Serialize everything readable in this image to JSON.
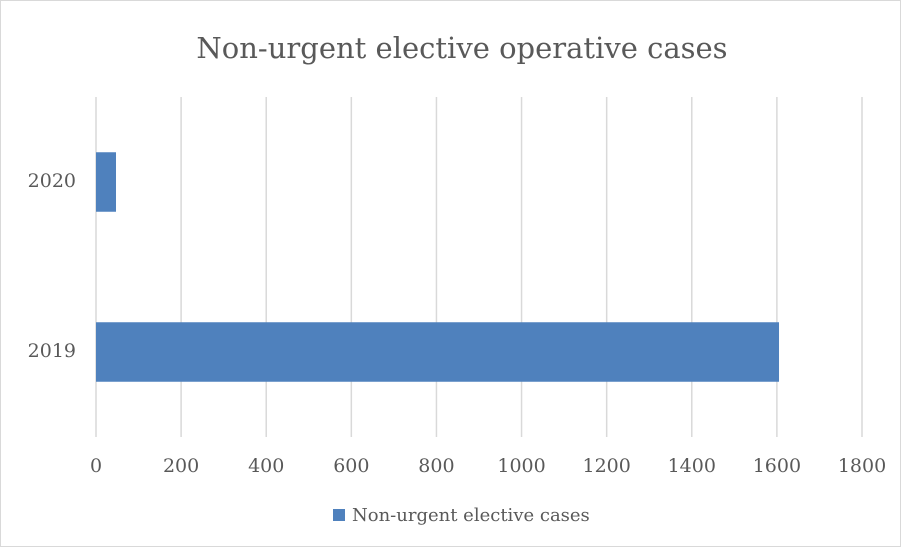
{
  "chart_data": {
    "type": "hbar",
    "title": "Non-urgent elective operative cases",
    "categories": [
      "2019",
      "2020"
    ],
    "series": [
      {
        "name": "Non-urgent elective cases",
        "color": "#4f81bd",
        "values": [
          1605,
          47
        ]
      }
    ],
    "xlim": [
      0,
      1800
    ],
    "xticks": [
      0,
      200,
      400,
      600,
      800,
      1000,
      1200,
      1400,
      1600,
      1800
    ],
    "grid": true,
    "legend": "bottom"
  }
}
